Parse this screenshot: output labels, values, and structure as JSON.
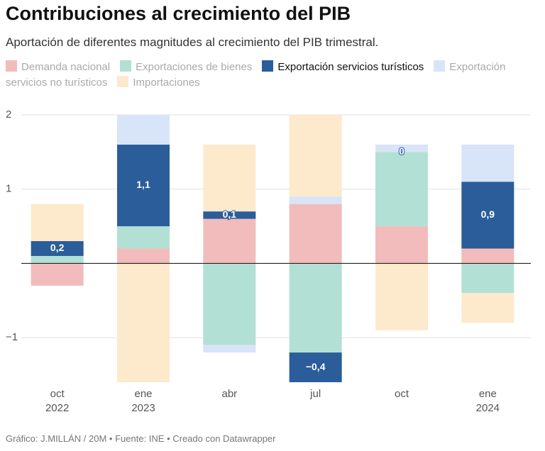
{
  "chart_data": {
    "type": "stacked-bar",
    "title": "Contribuciones al crecimiento del PIB",
    "subtitle": "Aportación de diferentes magnitudes al crecimiento del PIB trimestral.",
    "categories": [
      "oct 2022",
      "ene 2023",
      "abr",
      "jul",
      "oct",
      "ene 2024"
    ],
    "series": [
      {
        "name": "Demanda nacional",
        "color": "#f2bcbc",
        "values": [
          -0.3,
          0.2,
          0.6,
          0.8,
          0.5,
          0.2
        ]
      },
      {
        "name": "Exportaciones de bienes",
        "color": "#b3e0d4",
        "values": [
          0.1,
          0.3,
          -1.1,
          -1.2,
          1.0,
          -0.4
        ]
      },
      {
        "name": "Exportación servicios turísticos",
        "color": "#2a5d99",
        "values": [
          0.2,
          1.1,
          0.1,
          -0.4,
          0,
          0.9
        ],
        "value_labels": [
          "0,2",
          "1,1",
          "0,1",
          "−0,4",
          "0",
          "0,9"
        ]
      },
      {
        "name": "Exportación servicios no turísticos",
        "color": "#d8e4f8",
        "values": [
          0,
          0.4,
          -0.1,
          0.1,
          0.1,
          0.5
        ]
      },
      {
        "name": "Importaciones",
        "color": "#fde9cc",
        "values": [
          0.5,
          -1.6,
          0.9,
          1.1,
          -0.9,
          -0.4
        ]
      }
    ],
    "ylim": [
      -1.6,
      2
    ],
    "yticks": [
      {
        "value": -1,
        "label": "−1"
      },
      1,
      2
    ],
    "grid": true,
    "source": "Gráfico: J.MILLÁN / 20M • Fuente: INE • Creado con Datawrapper"
  }
}
